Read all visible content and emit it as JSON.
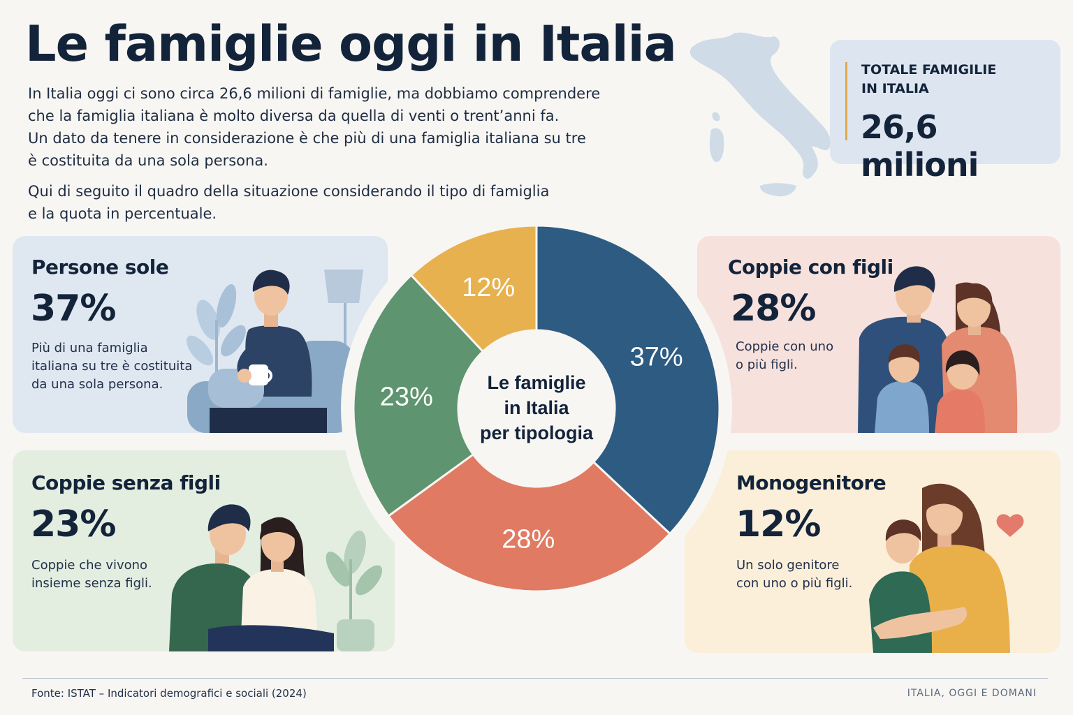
{
  "title": "Le famiglie oggi in Italia",
  "intro": {
    "p1": [
      "In Italia oggi ci sono circa 26,6 milioni di famiglie, ma dobbiamo comprendere",
      "che la famiglia italiana è molto diversa da quella di venti o trent’anni fa.",
      "Un dato da tenere in considerazione è che più di una famiglia italiana su tre",
      "è costituita da una sola persona."
    ],
    "p2": [
      "Qui di seguito il quadro della situazione considerando il tipo di famiglia",
      "e la quota in percentuale."
    ]
  },
  "total": {
    "label_line1": "TOTALE FAMIGILIE",
    "label_line2": "IN ITALIA",
    "value": "26,6 milioni"
  },
  "cards": {
    "sole": {
      "title": "Persone sole",
      "pct": "37%",
      "desc": [
        "Più di una famiglia",
        "italiana su tre è costituita",
        "da una sola persona."
      ]
    },
    "figli": {
      "title": "Coppie con figli",
      "pct": "28%",
      "desc": [
        "Coppie con uno",
        "o più figli."
      ]
    },
    "senza": {
      "title": "Coppie senza figli",
      "pct": "23%",
      "desc": [
        "Coppie che vivono",
        "insieme senza figli."
      ]
    },
    "mono": {
      "title": "Monogenitore",
      "pct": "12%",
      "desc": [
        "Un solo genitore",
        "con uno o più figli."
      ]
    }
  },
  "chart_data": {
    "type": "pie",
    "center_label": [
      "Le famiglie",
      "in Italia",
      "per tipologia"
    ],
    "categories": [
      "Persone sole",
      "Coppie con figli",
      "Coppie senza figli",
      "Monogenitore"
    ],
    "values": [
      37,
      28,
      23,
      12
    ],
    "value_labels": [
      "37%",
      "28%",
      "23%",
      "12%"
    ],
    "colors": [
      "#2d5b82",
      "#e07a62",
      "#5e9470",
      "#e8b14f"
    ]
  },
  "footer": {
    "source": "Fonte: ISTAT – Indicatori demografici e sociali (2024)",
    "brand": "ITALIA, OGGI E DOMANI"
  }
}
